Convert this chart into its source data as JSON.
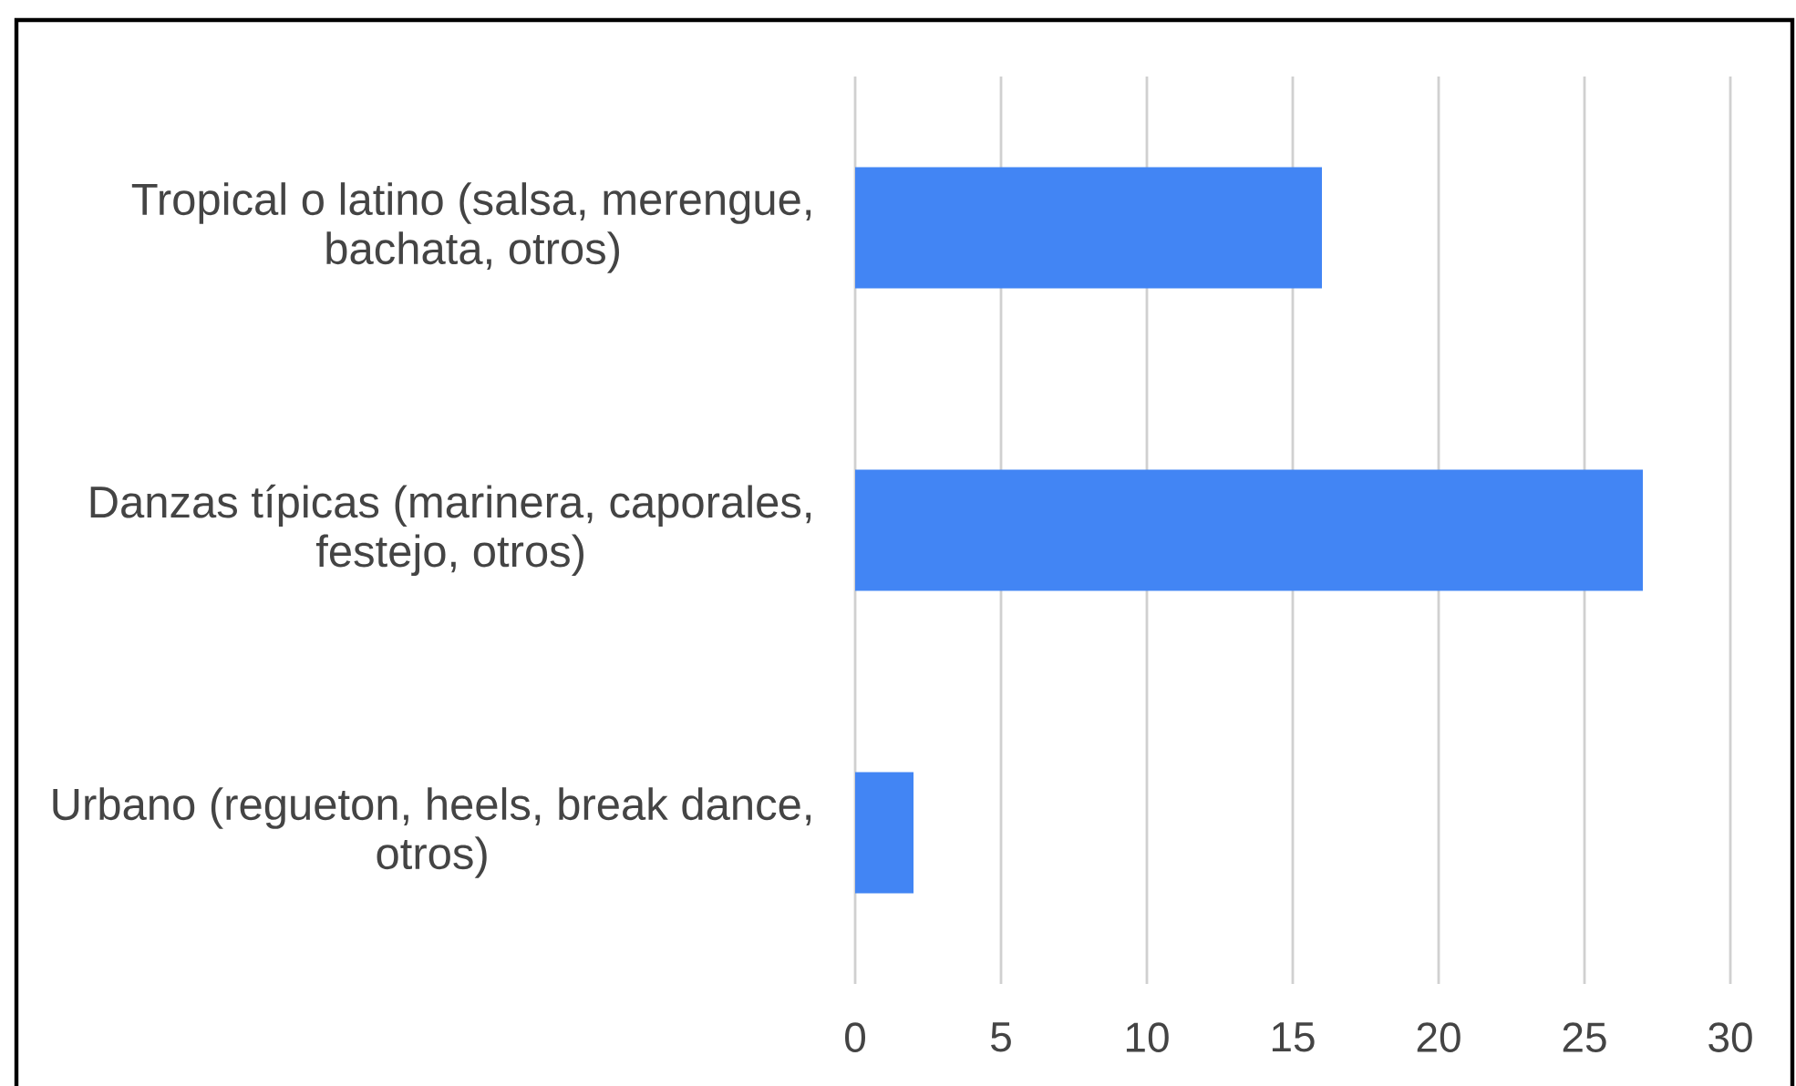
{
  "chart_data": {
    "type": "bar",
    "orientation": "horizontal",
    "categories": [
      "Tropical o latino (salsa, merengue, bachata, otros)",
      "Danzas típicas (marinera, caporales, festejo, otros)",
      "Urbano (regueton, heels, break dance, otros)"
    ],
    "values": [
      16,
      27,
      2
    ],
    "color": "#4285f4",
    "xlim": [
      0,
      30
    ],
    "xticks": [
      0,
      5,
      10,
      15,
      20,
      25,
      30
    ],
    "grid": "x"
  }
}
